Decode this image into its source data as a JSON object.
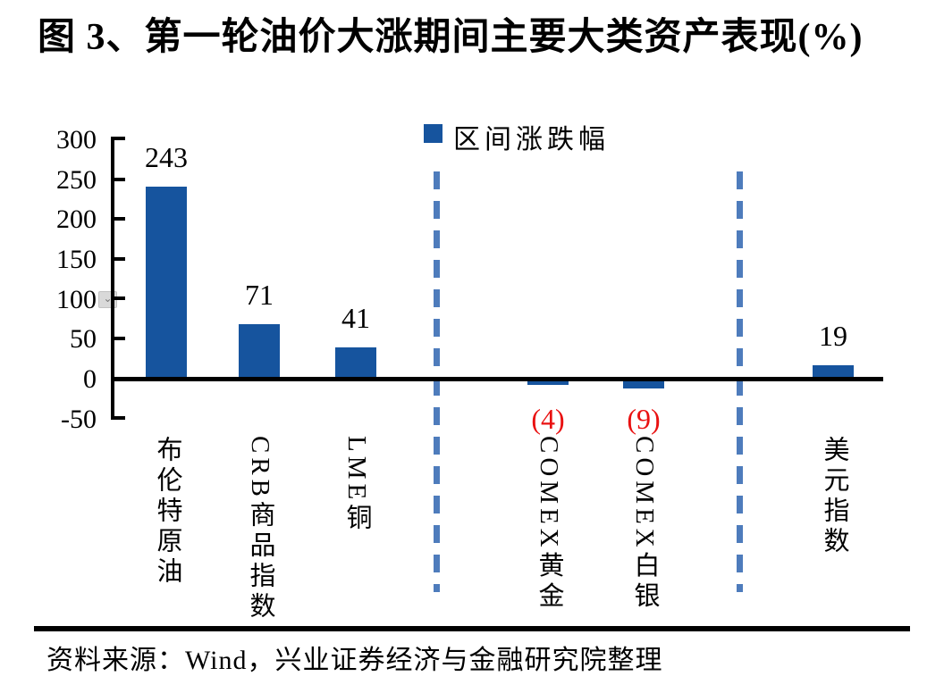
{
  "title": "图 3、第一轮油价大涨期间主要大类资产表现(%)",
  "legend": {
    "label": "区间涨跌幅"
  },
  "source": "资料来源：Wind，兴业证券经济与金融研究院整理",
  "overlay_icon": {
    "name": "chevron-down-icon",
    "glyph": "⌄"
  },
  "colors": {
    "bar": "#16549E",
    "separator_dash": "#4E7CBC",
    "negative_label": "#E91111",
    "axis": "#000000",
    "background": "#FFFFFF"
  },
  "chart_data": {
    "type": "bar",
    "title": "图 3、第一轮油价大涨期间主要大类资产表现(%)",
    "categories": [
      "布伦特原油",
      "CRB商品指数",
      "LME铜",
      "COMEX黄金",
      "COMEX白银",
      "美元指数"
    ],
    "series": [
      {
        "name": "区间涨跌幅",
        "values": [
          243,
          71,
          41,
          -4,
          -9,
          19
        ]
      }
    ],
    "value_labels": [
      "243",
      "71",
      "41",
      "(4)",
      "(9)",
      "19"
    ],
    "negative_label_style": "red text in parentheses below axis",
    "ylim": [
      -50,
      300
    ],
    "ytick_labels": [
      "300",
      "250",
      "200",
      "150",
      "100",
      "50",
      "0",
      "-50"
    ],
    "grid": false,
    "legend_position": "top-center",
    "separators_after_category_index": [
      2,
      4
    ],
    "xlabel": "",
    "ylabel": ""
  }
}
